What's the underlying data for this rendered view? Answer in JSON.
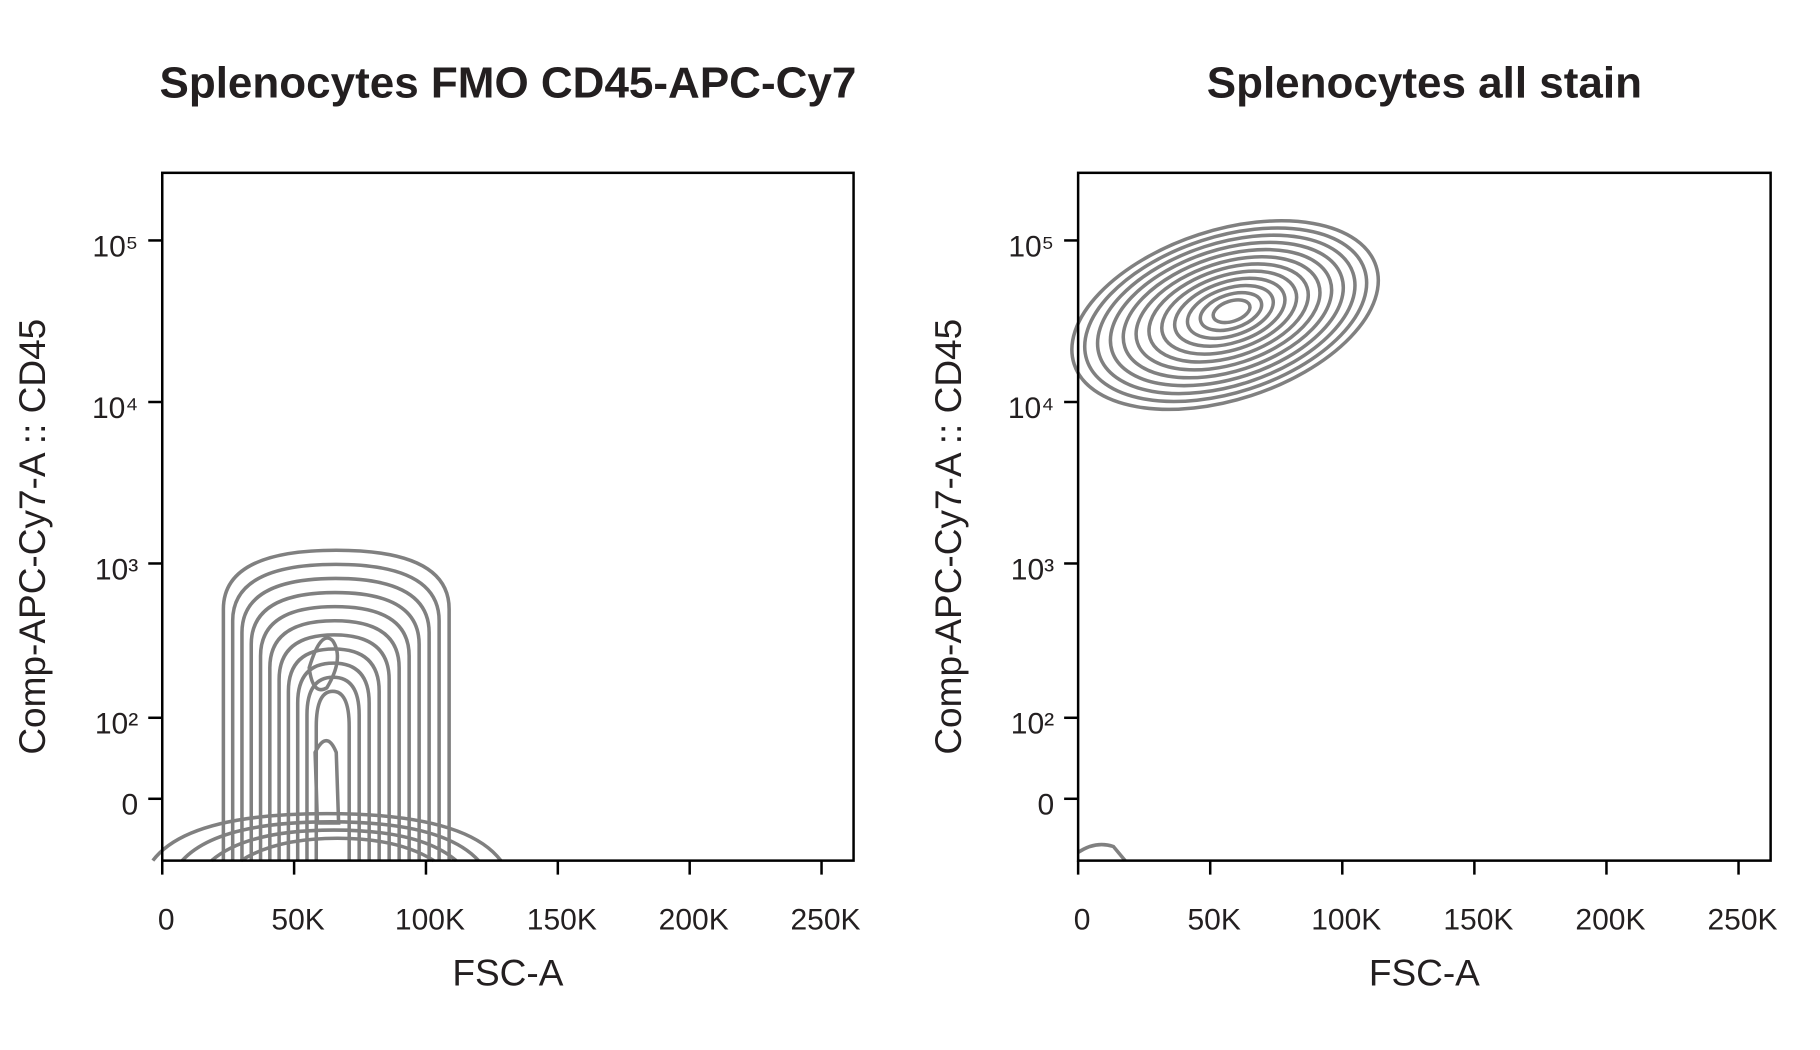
{
  "chart_data": [
    {
      "type": "contour",
      "title": "Splenocytes FMO CD45-APC-Cy7",
      "x_label": "FSC-A",
      "y_label": "Comp-APC-Cy7-A :: CD45",
      "xlim": [
        0,
        262144
      ],
      "ylim": [
        -70,
        262144
      ],
      "yscale": "biexponential",
      "color": "#808080",
      "xticks": [
        0,
        {
          "value": 50000,
          "label": "50K"
        },
        {
          "value": 100000,
          "label": "100K"
        },
        {
          "value": 150000,
          "label": "150K"
        },
        {
          "value": 200000,
          "label": "200K"
        },
        {
          "value": 250000,
          "label": "250K"
        }
      ],
      "yticks": [
        0,
        {
          "value": 100,
          "label": "10²"
        },
        {
          "value": 1000,
          "label": "10³"
        },
        {
          "value": 10000,
          "label": "10⁴"
        },
        {
          "value": 100000,
          "label": "10⁵"
        }
      ]
    },
    {
      "type": "contour",
      "title": "Splenocytes all stain",
      "x_label": "FSC-A",
      "y_label": "Comp-APC-Cy7-A :: CD45",
      "xlim": [
        0,
        262144
      ],
      "ylim": [
        -70,
        262144
      ],
      "yscale": "biexponential",
      "color": "#808080",
      "xticks": [
        0,
        {
          "value": 50000,
          "label": "50K"
        },
        {
          "value": 100000,
          "label": "100K"
        },
        {
          "value": 150000,
          "label": "150K"
        },
        {
          "value": 200000,
          "label": "200K"
        },
        {
          "value": 250000,
          "label": "250K"
        }
      ],
      "yticks": [
        0,
        {
          "value": 100,
          "label": "10²"
        },
        {
          "value": 1000,
          "label": "10³"
        },
        {
          "value": 10000,
          "label": "10⁴"
        },
        {
          "value": 100000,
          "label": "10⁵"
        }
      ]
    }
  ]
}
